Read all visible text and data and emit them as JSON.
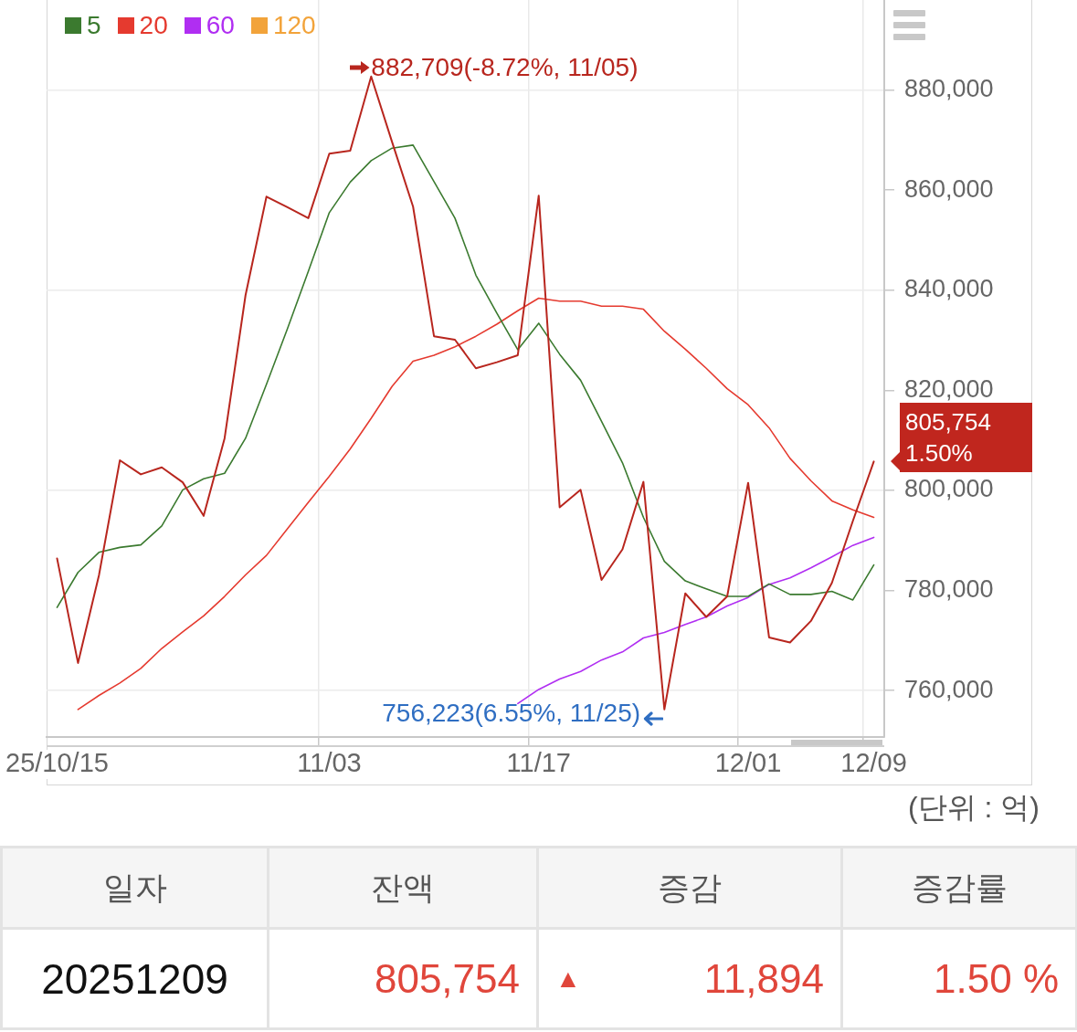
{
  "chart_data": [
    {
      "type": "line",
      "categories": [
        "25/10/15",
        null,
        null,
        null,
        null,
        null,
        null,
        null,
        null,
        null,
        null,
        null,
        null,
        "11/03",
        null,
        null,
        null,
        null,
        null,
        null,
        null,
        null,
        null,
        "11/17",
        null,
        null,
        null,
        null,
        null,
        null,
        null,
        null,
        null,
        "12/01",
        null,
        null,
        null,
        null,
        null,
        "12/09"
      ],
      "series": [
        {
          "color": "#b8261e",
          "values": [
            786400,
            765500,
            783000,
            806000,
            803200,
            804600,
            801600,
            794900,
            810400,
            839000,
            858700,
            856600,
            854400,
            867300,
            867900,
            882709,
            869600,
            856700,
            830800,
            830100,
            824400,
            825600,
            827000,
            858900,
            796600,
            800100,
            782100,
            788200,
            801700,
            756223,
            779400,
            774700,
            778800,
            801500,
            770600,
            769600,
            773900,
            781500,
            793860,
            805754
          ],
          "value_labels": [
            null,
            null,
            null,
            null,
            null,
            null,
            null,
            null,
            null,
            null,
            null,
            null,
            null,
            null,
            null,
            "882,709(-8.72%, 11/05)",
            null,
            null,
            null,
            null,
            null,
            null,
            null,
            null,
            null,
            null,
            null,
            null,
            null,
            "756,223(6.55%, 11/25)",
            null,
            null,
            null,
            null,
            null,
            null,
            null,
            null,
            null,
            null
          ]
        },
        {
          "name": "5",
          "color": "#3b7a2f",
          "values": [
            776600,
            783600,
            787600,
            788600,
            789100,
            792900,
            800100,
            802300,
            803400,
            810400,
            821200,
            832300,
            843800,
            855500,
            861600,
            865900,
            868400,
            869000,
            861700,
            854400,
            843000,
            835400,
            828100,
            833400,
            827200,
            822000,
            813800,
            805500,
            794600,
            785800,
            781900,
            780300,
            778800,
            778800,
            781300,
            779200,
            779200,
            779800,
            778100,
            785100
          ]
        },
        {
          "name": "20",
          "color": "#e53a2f",
          "values": [
            null,
            756200,
            759000,
            761500,
            764400,
            768400,
            771700,
            774900,
            778800,
            783100,
            787000,
            792300,
            797600,
            802800,
            808300,
            814400,
            820800,
            825800,
            827000,
            828700,
            830800,
            833200,
            835900,
            838400,
            837800,
            837800,
            836800,
            836800,
            836200,
            831800,
            828200,
            824400,
            820300,
            817100,
            812500,
            806400,
            801900,
            797900,
            796100,
            794600
          ]
        },
        {
          "name": "60",
          "color": "#b02ef2",
          "values": [
            null,
            null,
            null,
            null,
            null,
            null,
            null,
            null,
            null,
            null,
            null,
            null,
            null,
            null,
            null,
            null,
            null,
            null,
            null,
            null,
            null,
            null,
            757400,
            760200,
            762300,
            763800,
            766100,
            767700,
            770500,
            771600,
            773200,
            774700,
            776900,
            778600,
            781200,
            782500,
            784500,
            786700,
            789000,
            790600
          ]
        },
        {
          "name": "120",
          "color": "#f2a33a",
          "values": [
            null,
            null,
            null,
            null,
            null,
            null,
            null,
            null,
            null,
            null,
            null,
            null,
            null,
            null,
            null,
            null,
            null,
            null,
            null,
            null,
            null,
            null,
            null,
            null,
            null,
            null,
            null,
            null,
            null,
            null,
            null,
            null,
            null,
            null,
            null,
            null,
            null,
            null,
            null,
            null
          ]
        }
      ],
      "ylim": [
        750700,
        898000
      ],
      "yticks": [
        {
          "value": 760000,
          "label": "760,000"
        },
        {
          "value": 780000,
          "label": "780,000"
        },
        {
          "value": 800000,
          "label": "800,000"
        },
        {
          "value": 820000,
          "label": "820,000"
        },
        {
          "value": 840000,
          "label": "840,000"
        },
        {
          "value": 860000,
          "label": "860,000"
        },
        {
          "value": 880000,
          "label": "880,000"
        }
      ],
      "grid": true,
      "legend": "top left",
      "annotations": [
        {
          "text": "805,754",
          "x": "12/09",
          "y": 805754
        },
        {
          "text": "1.50%",
          "x": "12/09",
          "y": 805754
        },
        "(단위 : 억)"
      ]
    },
    {
      "type": "other",
      "categories": [
        "일자",
        "잔액",
        "증감",
        "증감률"
      ],
      "annotations": [
        "20251209",
        "805,754",
        "▲",
        "11,894",
        "1.50 %"
      ]
    }
  ]
}
